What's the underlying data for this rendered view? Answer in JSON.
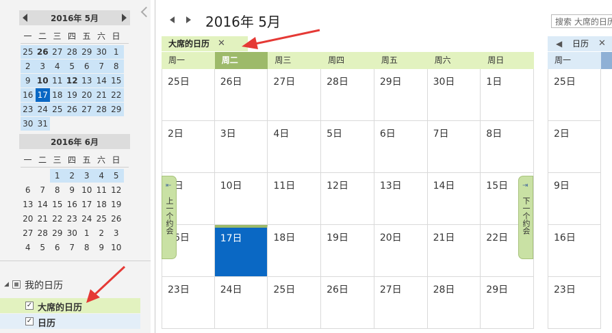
{
  "mini_calendars": [
    {
      "title": "2016年 5月",
      "weekdays": [
        "一",
        "二",
        "三",
        "四",
        "五",
        "六",
        "日"
      ],
      "rows": [
        [
          "25",
          "26",
          "27",
          "28",
          "29",
          "30",
          "1"
        ],
        [
          "2",
          "3",
          "4",
          "5",
          "6",
          "7",
          "8"
        ],
        [
          "9",
          "10",
          "11",
          "12",
          "13",
          "14",
          "15"
        ],
        [
          "16",
          "17",
          "18",
          "19",
          "20",
          "21",
          "22"
        ],
        [
          "23",
          "24",
          "25",
          "26",
          "27",
          "28",
          "29"
        ],
        [
          "30",
          "31",
          "",
          "",
          "",
          "",
          ""
        ]
      ]
    },
    {
      "title": "2016年 6月",
      "weekdays": [
        "一",
        "二",
        "三",
        "四",
        "五",
        "六",
        "日"
      ],
      "rows": [
        [
          "",
          "",
          "1",
          "2",
          "3",
          "4",
          "5"
        ],
        [
          "6",
          "7",
          "8",
          "9",
          "10",
          "11",
          "12"
        ],
        [
          "13",
          "14",
          "15",
          "16",
          "17",
          "18",
          "19"
        ],
        [
          "20",
          "21",
          "22",
          "23",
          "24",
          "25",
          "26"
        ],
        [
          "27",
          "28",
          "29",
          "30",
          "1",
          "2",
          "3"
        ],
        [
          "4",
          "5",
          "6",
          "7",
          "8",
          "9",
          "10"
        ]
      ]
    }
  ],
  "tree": {
    "group_label": "我的日历",
    "items": [
      {
        "label": "大席的日历",
        "checked": "✓"
      },
      {
        "label": "日历",
        "checked": "✓"
      }
    ]
  },
  "header": {
    "title": "2016年 5月",
    "search_placeholder": "搜索 大席的日历"
  },
  "tabs": {
    "primary": {
      "label": "大席的日历",
      "close": "✕"
    },
    "secondary": {
      "label": "日历",
      "close": "✕"
    }
  },
  "weekday_headers": [
    "周一",
    "周二",
    "周三",
    "周四",
    "周五",
    "周六",
    "周日"
  ],
  "month_cells": [
    [
      "25日",
      "26日",
      "27日",
      "28日",
      "29日",
      "30日",
      "1日"
    ],
    [
      "2日",
      "3日",
      "4日",
      "5日",
      "6日",
      "7日",
      "8日"
    ],
    [
      "9日",
      "10日",
      "11日",
      "12日",
      "13日",
      "14日",
      "15日"
    ],
    [
      "16日",
      "17日",
      "18日",
      "19日",
      "20日",
      "21日",
      "22日"
    ],
    [
      "23日",
      "24日",
      "25日",
      "26日",
      "27日",
      "28日",
      "29日"
    ]
  ],
  "second_calendar": {
    "weekday": "周一",
    "cells": [
      "25日",
      "2日",
      "9日",
      "16日",
      "23日"
    ]
  },
  "side_buttons": {
    "prev": "上一个约会",
    "next": "下一个约会"
  },
  "colors": {
    "accent_green": "#9dba6a",
    "tab_green": "#e2f2bf",
    "today_blue": "#0a68c4",
    "mini_in_range": "#cce4f7"
  }
}
